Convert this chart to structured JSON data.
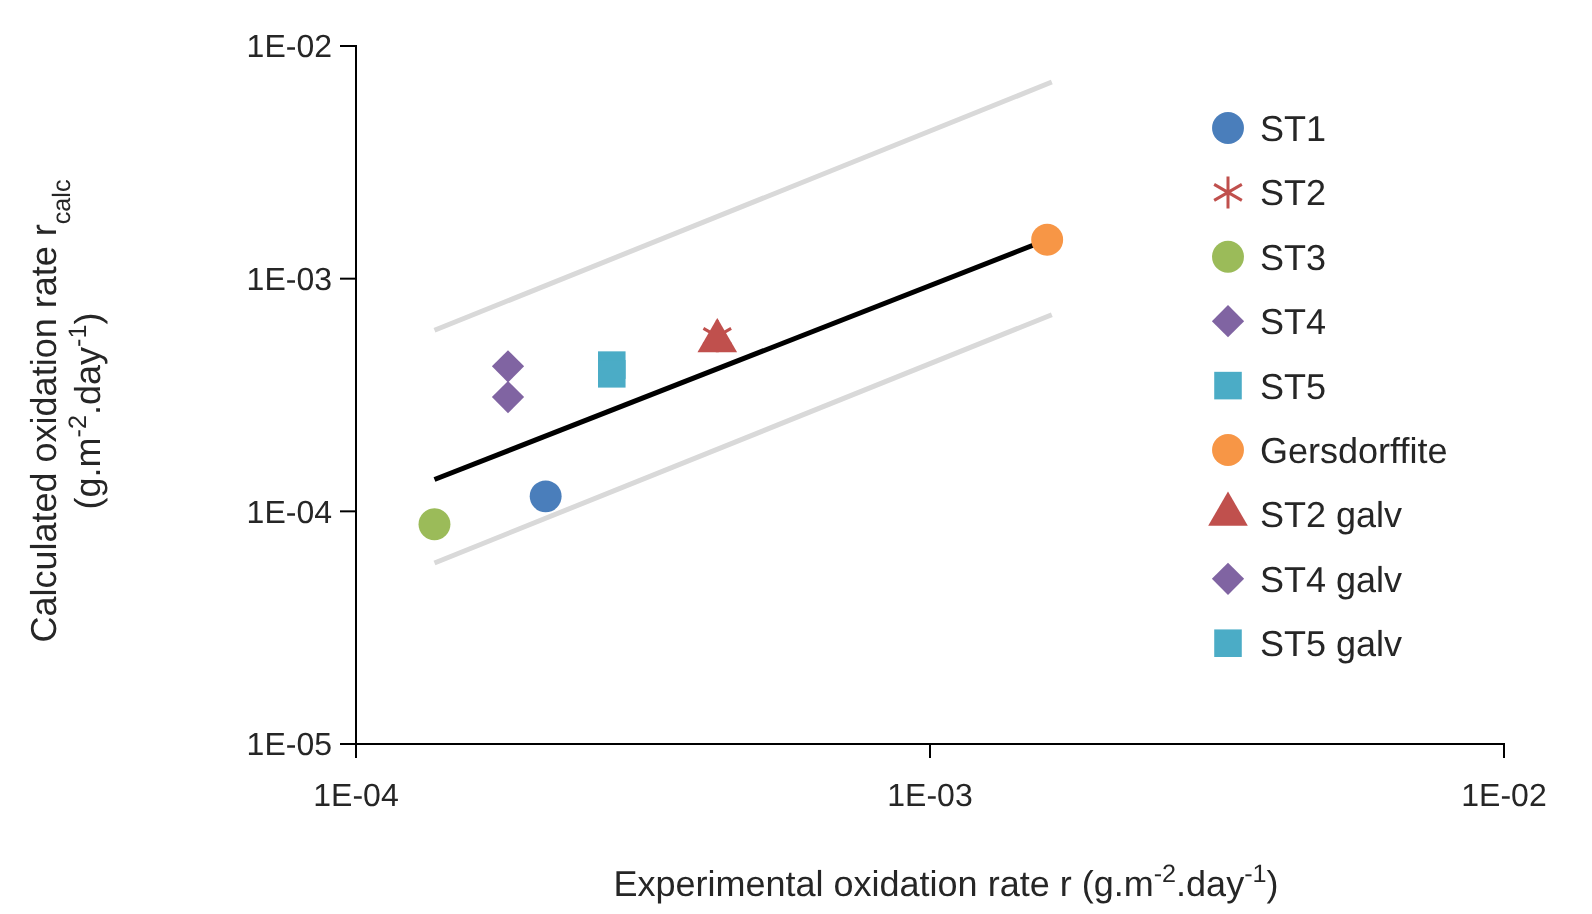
{
  "chart_data": {
    "type": "scatter",
    "xlabel": "Experimental oxidation rate r (g.m$^{-2}$.day$^{-1}$)",
    "ylabel": "Calculated oxidation rate r$_{calc}$\n(g.m$^{-2}$.day$^{-1}$)",
    "log": "xy",
    "xlim": [
      0.0001,
      0.01
    ],
    "ylim": [
      1e-05,
      0.01
    ],
    "xticks": [
      {
        "value": 0.0001,
        "label": "1E-04"
      },
      {
        "value": 0.001,
        "label": "1E-03"
      },
      {
        "value": 0.01,
        "label": "1E-02"
      }
    ],
    "yticks": [
      {
        "value": 1e-05,
        "label": "1E-05"
      },
      {
        "value": 0.0001,
        "label": "1E-04"
      },
      {
        "value": 0.001,
        "label": "1E-03"
      },
      {
        "value": 0.01,
        "label": "1E-02"
      }
    ],
    "grid": false,
    "legend": "right",
    "series": [
      {
        "type": "line",
        "color": "#d9d9d9",
        "x": [
          0.000137,
          0.00163
        ],
        "values": [
          6e-05,
          0.0007
        ],
        "marker": "none"
      },
      {
        "type": "line",
        "color": "#d9d9d9",
        "x": [
          0.000137,
          0.00163
        ],
        "values": [
          0.0006,
          0.007
        ],
        "marker": "none"
      },
      {
        "type": "line",
        "color": "#000000",
        "x": [
          0.000137,
          0.0016
        ],
        "values": [
          0.000137,
          0.00147
        ],
        "marker": "none"
      },
      {
        "name": "ST1",
        "color": "#4a7ebb",
        "marker": "circle",
        "x": [
          0.000214
        ],
        "values": [
          0.000116
        ]
      },
      {
        "name": "ST2",
        "color": "#c0504d",
        "marker": "cross",
        "x": [
          0.000426
        ],
        "values": [
          0.000565
        ]
      },
      {
        "name": "ST3",
        "color": "#9bbb59",
        "marker": "circle",
        "x": [
          0.000137
        ],
        "values": [
          8.8e-05
        ]
      },
      {
        "name": "ST4",
        "color": "#8064a2",
        "marker": "diamond",
        "x": [
          0.000184
        ],
        "values": [
          0.00042
        ]
      },
      {
        "name": "ST5",
        "color": "#4bacc6",
        "marker": "square",
        "x": [
          0.000279
        ],
        "values": [
          0.000425
        ]
      },
      {
        "name": "Gersdorffite",
        "color": "#f79646",
        "marker": "circle",
        "x": [
          0.0016
        ],
        "values": [
          0.00147
        ]
      },
      {
        "name": "ST2 galv",
        "color": "#c0504d",
        "marker": "triangle",
        "x": [
          0.000426
        ],
        "values": [
          0.00054
        ]
      },
      {
        "name": "ST4 galv",
        "color": "#8064a2",
        "marker": "diamond",
        "x": [
          0.000184
        ],
        "values": [
          0.00031
        ]
      },
      {
        "name": "ST5 galv",
        "color": "#4bacc6",
        "marker": "square",
        "x": [
          0.000279
        ],
        "values": [
          0.00039
        ]
      }
    ]
  }
}
